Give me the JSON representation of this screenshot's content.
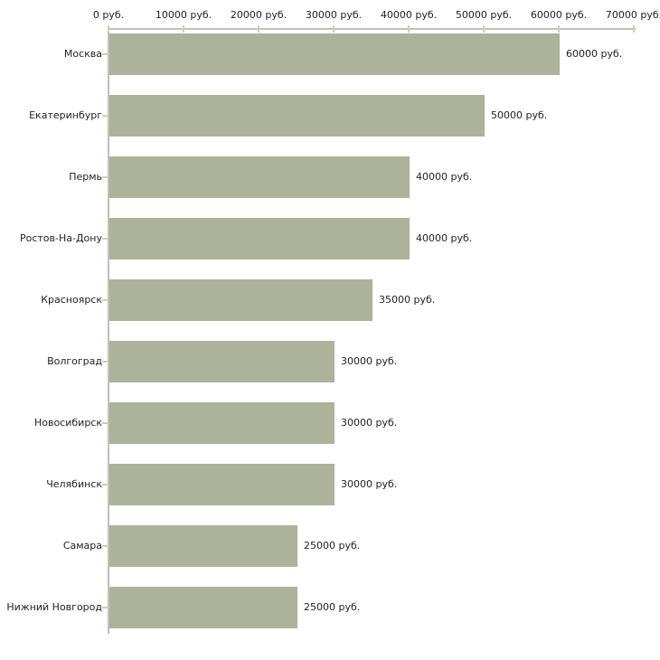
{
  "chart_data": {
    "type": "bar",
    "orientation": "horizontal",
    "title": "",
    "xlabel": "",
    "ylabel": "",
    "categories": [
      "Москва",
      "Екатеринбург",
      "Пермь",
      "Ростов-На-Дону",
      "Красноярск",
      "Волгоград",
      "Новосибирск",
      "Челябинск",
      "Самара",
      "Нижний Новгород"
    ],
    "values": [
      60000,
      50000,
      40000,
      40000,
      35000,
      30000,
      30000,
      30000,
      25000,
      25000
    ],
    "value_labels": [
      "60000 руб.",
      "50000 руб.",
      "40000 руб.",
      "40000 руб.",
      "35000 руб.",
      "30000 руб.",
      "30000 руб.",
      "30000 руб.",
      "25000 руб.",
      "25000 руб."
    ],
    "x_axis": {
      "position": "top",
      "min": 0,
      "max": 70000,
      "ticks": [
        0,
        10000,
        20000,
        30000,
        40000,
        50000,
        60000,
        70000
      ],
      "tick_labels": [
        "0 руб.",
        "10000 руб.",
        "20000 руб.",
        "30000 руб.",
        "40000 руб.",
        "50000 руб.",
        "60000 руб.",
        "70000 руб."
      ]
    },
    "grid": false,
    "legend": false,
    "colors": {
      "bar": "#adb29a",
      "axis_line": "#c0c0c0",
      "tick_mark": "#cfd2a4",
      "text": "#1f1f1f",
      "background": "#ffffff"
    }
  }
}
